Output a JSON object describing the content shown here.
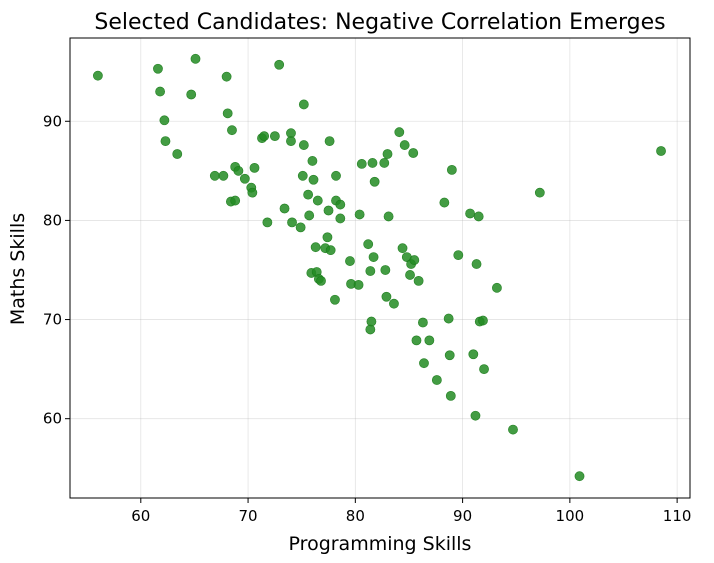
{
  "chart_data": {
    "type": "scatter",
    "title": "Selected Candidates: Negative Correlation Emerges",
    "xlabel": "Programming Skills",
    "ylabel": "Maths Skills",
    "xlim": [
      53.4,
      111.2
    ],
    "ylim": [
      52.0,
      98.4
    ],
    "xticks": [
      60,
      70,
      80,
      90,
      100,
      110
    ],
    "yticks": [
      60,
      70,
      80,
      90
    ],
    "grid": true,
    "point_color": "#228B22",
    "point_alpha": 0.85,
    "points": [
      [
        56.0,
        94.6
      ],
      [
        61.6,
        95.3
      ],
      [
        61.8,
        93.0
      ],
      [
        62.2,
        90.1
      ],
      [
        62.3,
        88.0
      ],
      [
        63.4,
        86.7
      ],
      [
        64.7,
        92.7
      ],
      [
        65.1,
        96.3
      ],
      [
        66.9,
        84.5
      ],
      [
        67.7,
        84.5
      ],
      [
        68.0,
        94.5
      ],
      [
        68.1,
        90.8
      ],
      [
        68.4,
        81.9
      ],
      [
        68.5,
        89.1
      ],
      [
        68.8,
        82.0
      ],
      [
        68.8,
        85.4
      ],
      [
        69.1,
        85.0
      ],
      [
        69.7,
        84.2
      ],
      [
        70.3,
        83.3
      ],
      [
        70.4,
        82.8
      ],
      [
        70.6,
        85.3
      ],
      [
        71.3,
        88.3
      ],
      [
        71.5,
        88.5
      ],
      [
        71.8,
        79.8
      ],
      [
        72.5,
        88.5
      ],
      [
        72.9,
        95.7
      ],
      [
        73.4,
        81.2
      ],
      [
        74.0,
        88.8
      ],
      [
        74.0,
        88.0
      ],
      [
        74.1,
        79.8
      ],
      [
        74.9,
        79.3
      ],
      [
        75.1,
        84.5
      ],
      [
        75.2,
        91.7
      ],
      [
        75.2,
        87.6
      ],
      [
        75.6,
        82.6
      ],
      [
        75.7,
        80.5
      ],
      [
        75.9,
        74.7
      ],
      [
        76.0,
        86.0
      ],
      [
        76.1,
        84.1
      ],
      [
        76.3,
        77.3
      ],
      [
        76.4,
        74.8
      ],
      [
        76.5,
        82.0
      ],
      [
        76.6,
        74.1
      ],
      [
        76.8,
        73.9
      ],
      [
        77.2,
        77.2
      ],
      [
        77.4,
        78.3
      ],
      [
        77.5,
        81.0
      ],
      [
        77.6,
        88.0
      ],
      [
        77.7,
        77.0
      ],
      [
        78.1,
        72.0
      ],
      [
        78.2,
        82.0
      ],
      [
        78.2,
        84.5
      ],
      [
        78.6,
        81.6
      ],
      [
        78.6,
        80.2
      ],
      [
        79.5,
        75.9
      ],
      [
        79.6,
        73.6
      ],
      [
        80.3,
        73.5
      ],
      [
        80.4,
        80.6
      ],
      [
        80.6,
        85.7
      ],
      [
        81.2,
        77.6
      ],
      [
        81.4,
        69.0
      ],
      [
        81.4,
        74.9
      ],
      [
        81.5,
        69.8
      ],
      [
        81.6,
        85.8
      ],
      [
        81.7,
        76.3
      ],
      [
        81.8,
        83.9
      ],
      [
        82.7,
        85.8
      ],
      [
        82.8,
        75.0
      ],
      [
        82.9,
        72.3
      ],
      [
        83.0,
        86.7
      ],
      [
        83.1,
        80.4
      ],
      [
        83.6,
        71.6
      ],
      [
        84.1,
        88.9
      ],
      [
        84.4,
        77.2
      ],
      [
        84.6,
        87.6
      ],
      [
        84.8,
        76.3
      ],
      [
        85.1,
        74.5
      ],
      [
        85.2,
        75.6
      ],
      [
        85.4,
        86.8
      ],
      [
        85.5,
        76.0
      ],
      [
        85.7,
        67.9
      ],
      [
        85.9,
        73.9
      ],
      [
        86.3,
        69.7
      ],
      [
        86.4,
        65.6
      ],
      [
        86.9,
        67.9
      ],
      [
        87.6,
        63.9
      ],
      [
        88.3,
        81.8
      ],
      [
        88.7,
        70.1
      ],
      [
        88.8,
        66.4
      ],
      [
        88.9,
        62.3
      ],
      [
        89.0,
        85.1
      ],
      [
        89.6,
        76.5
      ],
      [
        90.7,
        80.7
      ],
      [
        91.0,
        66.5
      ],
      [
        91.2,
        60.3
      ],
      [
        91.3,
        75.6
      ],
      [
        91.5,
        80.4
      ],
      [
        91.6,
        69.8
      ],
      [
        91.9,
        69.9
      ],
      [
        92.0,
        65.0
      ],
      [
        93.2,
        73.2
      ],
      [
        94.7,
        58.9
      ],
      [
        97.2,
        82.8
      ],
      [
        100.9,
        54.2
      ],
      [
        108.5,
        87.0
      ]
    ]
  }
}
